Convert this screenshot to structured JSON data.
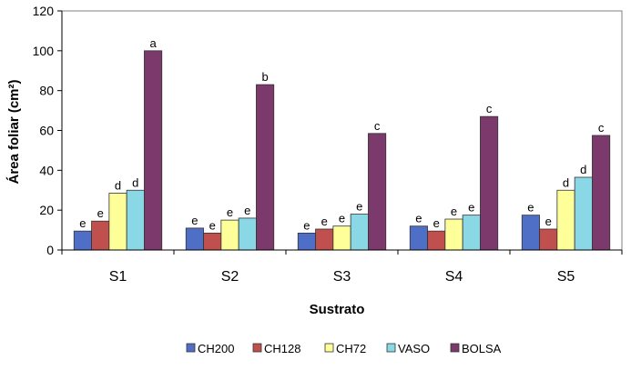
{
  "chart_data": {
    "type": "bar",
    "title": "",
    "xlabel": "Sustrato",
    "ylabel": "Área foliar (cm²)",
    "ylim": [
      0,
      120
    ],
    "yticks": [
      "0",
      "20",
      "40",
      "60",
      "80",
      "100",
      "120"
    ],
    "categories": [
      "S1",
      "S2",
      "S3",
      "S4",
      "S5"
    ],
    "legend_position": "bottom",
    "series": [
      {
        "name": "CH200",
        "color": "#4f6fc6",
        "values": [
          9.5,
          11,
          8.5,
          12,
          17.5
        ],
        "labels": [
          "e",
          "e",
          "e",
          "e",
          "e"
        ]
      },
      {
        "name": "CH128",
        "color": "#c0504d",
        "values": [
          14.5,
          8.5,
          10.5,
          9.5,
          10.5
        ],
        "labels": [
          "e",
          "e",
          "e",
          "e",
          "e"
        ]
      },
      {
        "name": "CH72",
        "color": "#ffff99",
        "values": [
          28.5,
          15,
          12,
          15.5,
          30
        ],
        "labels": [
          "d",
          "e",
          "e",
          "e",
          "d"
        ]
      },
      {
        "name": "VASO",
        "color": "#8ad8e6",
        "values": [
          30,
          16,
          18,
          17.5,
          36.5
        ],
        "labels": [
          "d",
          "e",
          "e",
          "e",
          "d"
        ]
      },
      {
        "name": "BOLSA",
        "color": "#7b3a6b",
        "values": [
          100,
          83,
          58.5,
          67,
          57.5
        ],
        "labels": [
          "a",
          "b",
          "c",
          "c",
          "c"
        ]
      }
    ]
  }
}
